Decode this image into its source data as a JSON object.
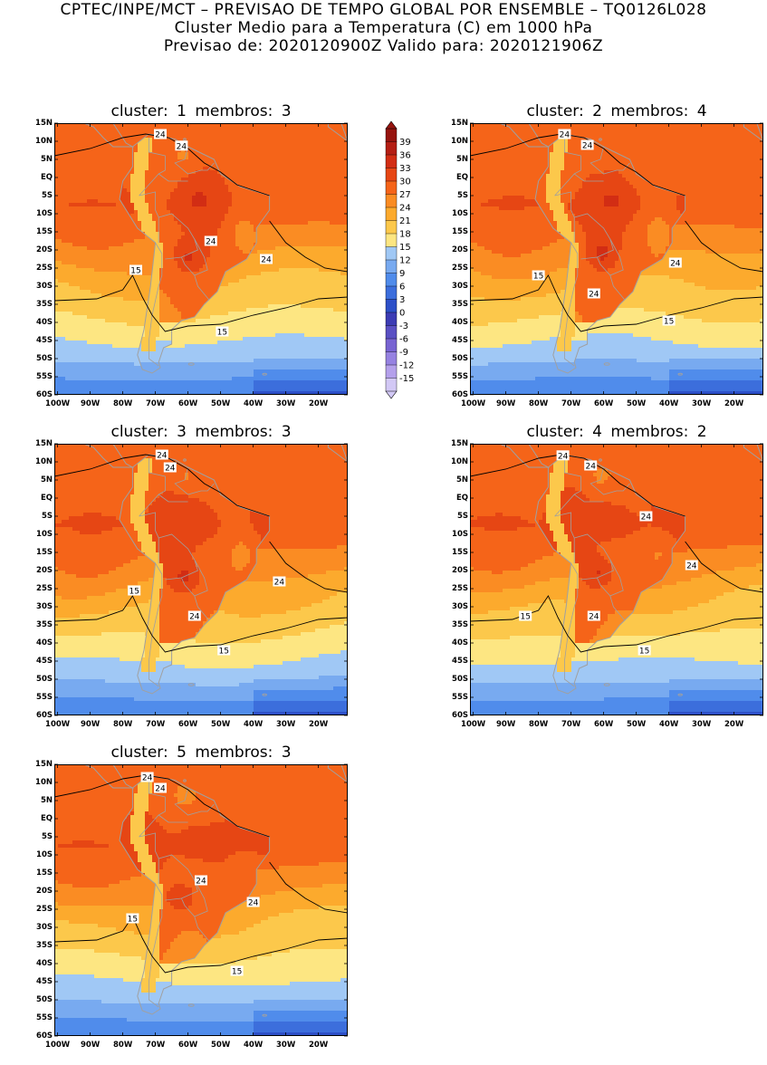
{
  "header": {
    "line1": "CPTEC/INPE/MCT – PREVISAO DE TEMPO GLOBAL POR ENSEMBLE – TQ0126L028",
    "line2": "Cluster Medio para a Temperatura (C) em 1000 hPa",
    "line3": "Previsao de: 2020120900Z   Valido para: 2020121906Z"
  },
  "axes": {
    "lat_labels": [
      "15N",
      "10N",
      "5N",
      "EQ",
      "5S",
      "10S",
      "15S",
      "20S",
      "25S",
      "30S",
      "35S",
      "40S",
      "45S",
      "50S",
      "55S",
      "60S"
    ],
    "lon_labels": [
      "100W",
      "90W",
      "80W",
      "70W",
      "60W",
      "50W",
      "40W",
      "30W",
      "20W"
    ]
  },
  "legend": {
    "levels": [
      "39",
      "36",
      "33",
      "30",
      "27",
      "24",
      "21",
      "18",
      "15",
      "12",
      "9",
      "6",
      "3",
      "0",
      "-3",
      "-6",
      "-9",
      "-12",
      "-15"
    ],
    "colors": [
      "#96140f",
      "#b41e14",
      "#d22d14",
      "#e64614",
      "#f56419",
      "#fa8c23",
      "#fcaa2d",
      "#fcc84b",
      "#fde682",
      "#a0c8f5",
      "#78aaf0",
      "#508ceb",
      "#3c6edc",
      "#2d50c8",
      "#3c3cb4",
      "#5a50c3",
      "#7864d2",
      "#9682e1",
      "#b4a0eb",
      "#d2c8f5"
    ]
  },
  "colors": {
    "contour_line": "#000000",
    "border_line": "#a0a0a0"
  },
  "panels": [
    {
      "title": "cluster: 1   membros: 3",
      "labels": [
        {
          "text": "24",
          "lon": -68.5,
          "lat": 12
        },
        {
          "text": "24",
          "lon": -62,
          "lat": 8.8
        },
        {
          "text": "24",
          "lon": -53,
          "lat": -17.5
        },
        {
          "text": "24",
          "lon": -36,
          "lat": -22.5
        },
        {
          "text": "15",
          "lon": -76,
          "lat": -25.5
        },
        {
          "text": "15",
          "lon": -49.5,
          "lat": -42.5
        }
      ]
    },
    {
      "title": "cluster: 2   membros: 4",
      "labels": [
        {
          "text": "24",
          "lon": -72,
          "lat": 12
        },
        {
          "text": "24",
          "lon": -65,
          "lat": 9
        },
        {
          "text": "24",
          "lon": -38,
          "lat": -23.5
        },
        {
          "text": "24",
          "lon": -63,
          "lat": -32
        },
        {
          "text": "15",
          "lon": -80,
          "lat": -27
        },
        {
          "text": "15",
          "lon": -40,
          "lat": -39.5
        }
      ]
    },
    {
      "title": "cluster: 3   membros: 3",
      "labels": [
        {
          "text": "24",
          "lon": -68,
          "lat": 12
        },
        {
          "text": "24",
          "lon": -65.5,
          "lat": 8.5
        },
        {
          "text": "24",
          "lon": -58,
          "lat": -32.5
        },
        {
          "text": "24",
          "lon": -32,
          "lat": -23
        },
        {
          "text": "15",
          "lon": -76.5,
          "lat": -25.5
        },
        {
          "text": "15",
          "lon": -49,
          "lat": -42
        }
      ]
    },
    {
      "title": "cluster: 4   membros: 2",
      "labels": [
        {
          "text": "24",
          "lon": -72.5,
          "lat": 11.8
        },
        {
          "text": "24",
          "lon": -64,
          "lat": 9
        },
        {
          "text": "24",
          "lon": -47,
          "lat": -5
        },
        {
          "text": "24",
          "lon": -33,
          "lat": -18.5
        },
        {
          "text": "24",
          "lon": -63,
          "lat": -32.5
        },
        {
          "text": "15",
          "lon": -84,
          "lat": -32.5
        },
        {
          "text": "15",
          "lon": -47.5,
          "lat": -42
        }
      ]
    },
    {
      "title": "cluster: 5   membros: 3",
      "labels": [
        {
          "text": "24",
          "lon": -72.5,
          "lat": 11.5
        },
        {
          "text": "24",
          "lon": -68.5,
          "lat": 8.5
        },
        {
          "text": "24",
          "lon": -56,
          "lat": -17
        },
        {
          "text": "24",
          "lon": -40,
          "lat": -23
        },
        {
          "text": "15",
          "lon": -77,
          "lat": -27.5
        },
        {
          "text": "15",
          "lon": -45,
          "lat": -42
        }
      ]
    }
  ]
}
